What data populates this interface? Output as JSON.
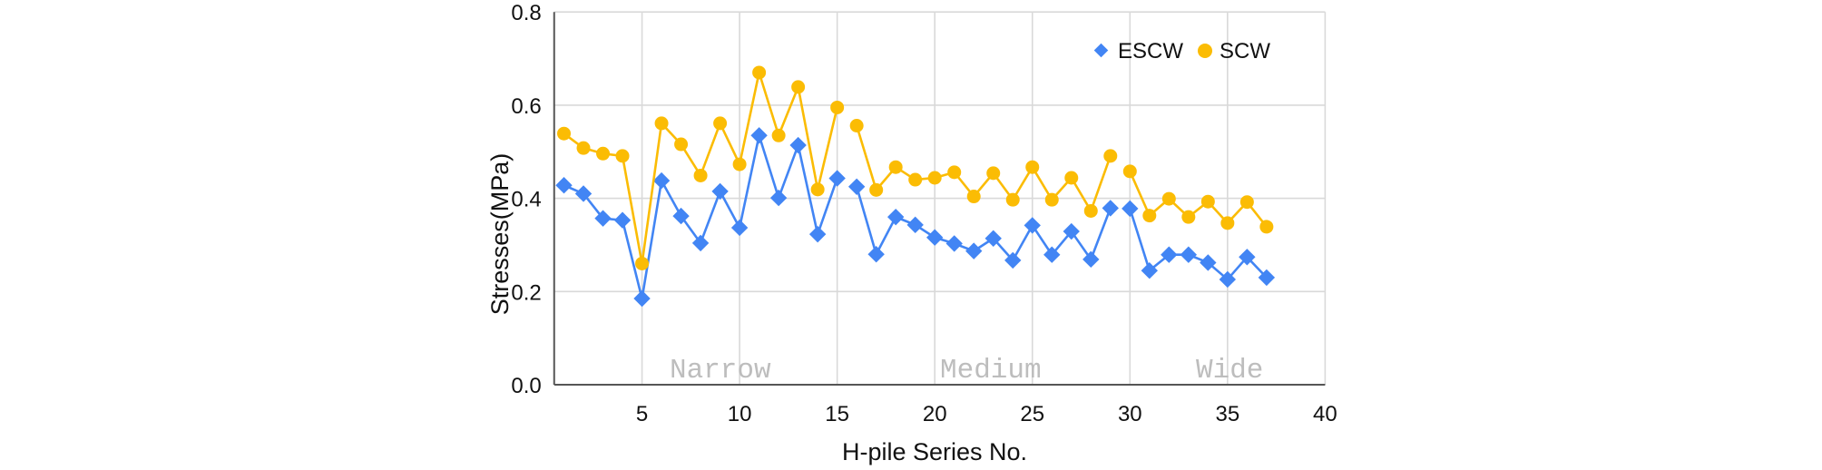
{
  "chart_data": {
    "type": "line",
    "title": "",
    "xlabel": "H-pile Series No.",
    "ylabel": "Stresses(MPa)",
    "xlim": [
      0.5,
      40
    ],
    "ylim": [
      0.0,
      0.8
    ],
    "x_ticks": [
      5,
      10,
      15,
      20,
      25,
      30,
      35,
      40
    ],
    "y_ticks": [
      "0.0",
      "0.2",
      "0.4",
      "0.6",
      "0.8"
    ],
    "grid": true,
    "legend_position": "top-right (inside)",
    "x": [
      1,
      2,
      3,
      4,
      5,
      6,
      7,
      8,
      9,
      10,
      11,
      12,
      13,
      14,
      15,
      16,
      17,
      18,
      19,
      20,
      21,
      22,
      23,
      24,
      25,
      26,
      27,
      28,
      29,
      30,
      31,
      32,
      33,
      34,
      35,
      36,
      37
    ],
    "segment_breaks_after": [
      15,
      29
    ],
    "series": [
      {
        "name": "ESCW",
        "color": "#4285f4",
        "marker": "diamond",
        "values": [
          0.428,
          0.41,
          0.357,
          0.353,
          0.185,
          0.438,
          0.362,
          0.304,
          0.415,
          0.337,
          0.535,
          0.401,
          0.514,
          0.323,
          0.443,
          0.425,
          0.28,
          0.36,
          0.343,
          0.316,
          0.303,
          0.287,
          0.314,
          0.267,
          0.342,
          0.279,
          0.329,
          0.269,
          0.379,
          0.378,
          0.245,
          0.279,
          0.279,
          0.262,
          0.226,
          0.274,
          0.23
        ]
      },
      {
        "name": "SCW",
        "color": "#fbbc04",
        "marker": "circle",
        "values": [
          0.539,
          0.508,
          0.496,
          0.491,
          0.26,
          0.561,
          0.516,
          0.449,
          0.561,
          0.473,
          0.67,
          0.535,
          0.639,
          0.419,
          0.595,
          0.556,
          0.418,
          0.467,
          0.44,
          0.444,
          0.456,
          0.404,
          0.454,
          0.397,
          0.467,
          0.397,
          0.444,
          0.373,
          0.491,
          0.458,
          0.363,
          0.399,
          0.36,
          0.393,
          0.347,
          0.392,
          0.339
        ]
      }
    ],
    "annotations": [
      {
        "text": "Narrow",
        "x": 8.5,
        "y": 0.03
      },
      {
        "text": "Medium",
        "x": 22.3,
        "y": 0.03
      },
      {
        "text": "Wide",
        "x": 35.1,
        "y": 0.03
      }
    ]
  },
  "legend": {
    "items": [
      {
        "label": "ESCW",
        "color": "#4285f4",
        "marker": "diamond"
      },
      {
        "label": "SCW",
        "color": "#fbbc04",
        "marker": "circle"
      }
    ]
  },
  "axes": {
    "xlabel": "H-pile Series No.",
    "ylabel": "Stresses(MPa)"
  },
  "regions": {
    "narrow": "Narrow",
    "medium": "Medium",
    "wide": "Wide"
  }
}
